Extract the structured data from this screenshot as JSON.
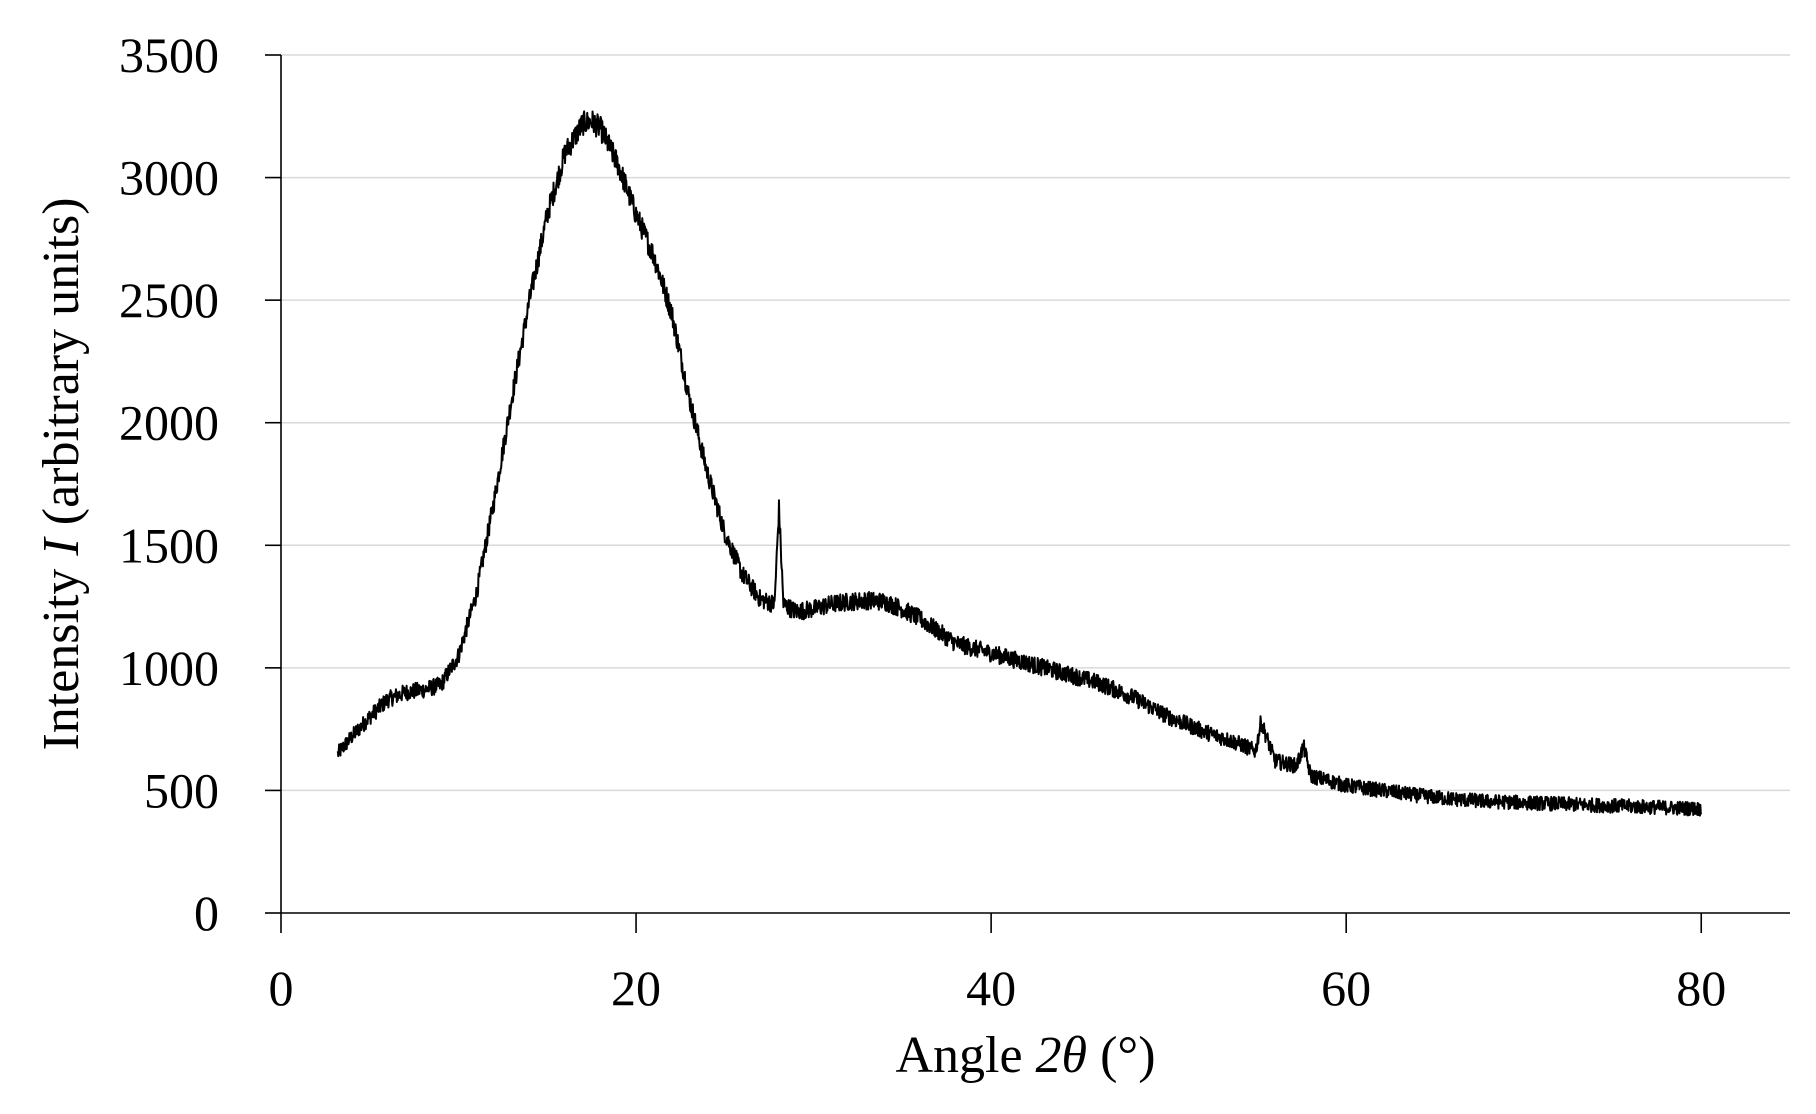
{
  "chart_data": {
    "type": "line",
    "xlabel": {
      "pre": "Angle ",
      "var": "2θ",
      "post": " (°)"
    },
    "ylabel": {
      "pre": "Intensity ",
      "var": "I",
      "post": " (arbitrary units)"
    },
    "xlim": [
      0,
      85
    ],
    "ylim": [
      0,
      3500
    ],
    "xticks": [
      0,
      20,
      40,
      60,
      80
    ],
    "yticks": [
      0,
      500,
      1000,
      1500,
      2000,
      2500,
      3000,
      3500
    ],
    "grid": "horizontal",
    "legend": "none",
    "line_color": "#000000",
    "noise_amplitude": 35,
    "series": [
      {
        "x": [
          3.2,
          4,
          5,
          6,
          7,
          8,
          9,
          10,
          11,
          12,
          13,
          14,
          15,
          16,
          17,
          17.5,
          18,
          19,
          20,
          21,
          22,
          23,
          24,
          25,
          26,
          27,
          27.8,
          28.05,
          28.3,
          29,
          30,
          31,
          32,
          33,
          34,
          35,
          36,
          37,
          38,
          40,
          42,
          44,
          46,
          48,
          50,
          52,
          54,
          54.9,
          55.2,
          56,
          57.2,
          57.6,
          58,
          60,
          62,
          64,
          66,
          68,
          70,
          72,
          74,
          76,
          78,
          80
        ],
        "y": [
          650,
          720,
          800,
          870,
          900,
          910,
          930,
          1050,
          1300,
          1680,
          2100,
          2500,
          2850,
          3100,
          3220,
          3230,
          3200,
          3050,
          2850,
          2680,
          2450,
          2100,
          1800,
          1550,
          1380,
          1280,
          1260,
          1650,
          1260,
          1230,
          1240,
          1260,
          1270,
          1275,
          1270,
          1240,
          1200,
          1150,
          1100,
          1060,
          1020,
          980,
          940,
          880,
          800,
          740,
          690,
          660,
          780,
          620,
          600,
          680,
          560,
          520,
          500,
          480,
          465,
          455,
          450,
          445,
          440,
          435,
          430,
          425
        ]
      }
    ]
  }
}
